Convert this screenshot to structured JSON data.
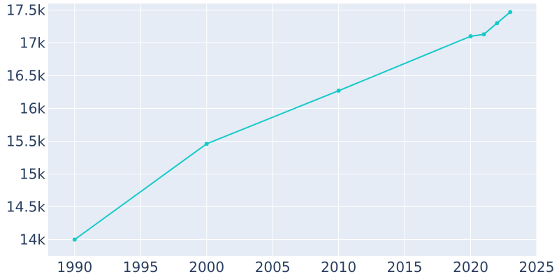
{
  "chart_data": {
    "type": "line",
    "title": "",
    "xlabel": "",
    "ylabel": "",
    "xlim": [
      1988,
      2025
    ],
    "ylim": [
      13750,
      17600
    ],
    "x_ticks": [
      1990,
      1995,
      2000,
      2005,
      2010,
      2015,
      2020,
      2025
    ],
    "y_ticks": [
      14000,
      14500,
      15000,
      15500,
      16000,
      16500,
      17000,
      17500
    ],
    "x_tick_labels": [
      "1990",
      "1995",
      "2000",
      "2005",
      "2010",
      "2015",
      "2020",
      "2025"
    ],
    "y_tick_labels": [
      "14k",
      "14.5k",
      "15k",
      "15.5k",
      "16k",
      "16.5k",
      "17k",
      "17.5k"
    ],
    "grid": true,
    "legend": "none",
    "series": [
      {
        "x": [
          1990,
          2000,
          2010,
          2020,
          2021,
          2022,
          2023
        ],
        "y": [
          14000,
          15460,
          16270,
          17100,
          17130,
          17300,
          17470
        ]
      }
    ]
  },
  "colors": {
    "plot_background": "#e5ecf6",
    "grid": "#ffffff",
    "line": "#17c9c9",
    "tick_text": "#2a3f5f"
  }
}
